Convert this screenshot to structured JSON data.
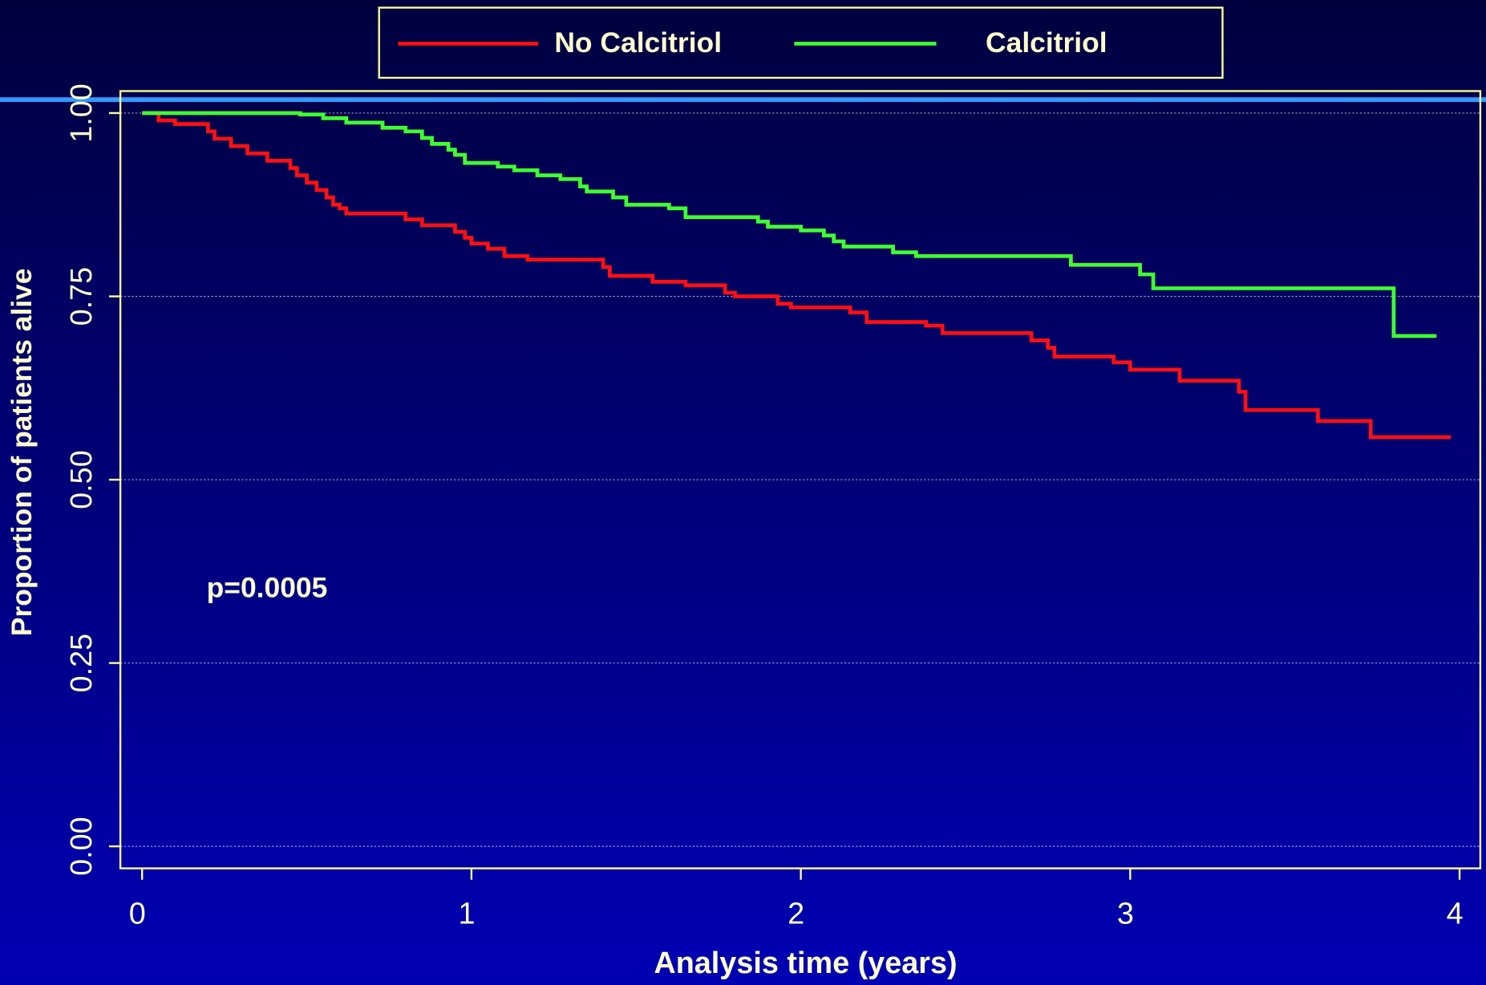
{
  "chart_data": {
    "type": "step",
    "xlabel": "Analysis time (years)",
    "ylabel": "Proportion of patients alive",
    "annotation": "p=0.0005",
    "xlim": [
      -0.066,
      4.063
    ],
    "ylim": [
      -0.03,
      1.03
    ],
    "xticks": [
      0,
      1,
      2,
      3,
      4
    ],
    "yticks": [
      {
        "value": 0,
        "label": "0.00"
      },
      {
        "value": 0.25,
        "label": "0.25"
      },
      {
        "value": 0.5,
        "label": "0.50"
      },
      {
        "value": 0.75,
        "label": "0.75"
      },
      {
        "value": 1,
        "label": "1.00"
      }
    ],
    "grid": true,
    "series": [
      {
        "name": "No Calcitriol",
        "color": "#ff1010",
        "x": [
          0,
          0.05,
          0.1,
          0.2,
          0.22,
          0.27,
          0.32,
          0.38,
          0.45,
          0.47,
          0.5,
          0.53,
          0.56,
          0.58,
          0.6,
          0.62,
          0.8,
          0.85,
          0.95,
          0.98,
          1.0,
          1.05,
          1.1,
          1.17,
          1.4,
          1.42,
          1.55,
          1.65,
          1.77,
          1.8,
          1.93,
          1.97,
          2.15,
          2.2,
          2.38,
          2.43,
          2.7,
          2.75,
          2.77,
          2.95,
          3.0,
          3.15,
          3.33,
          3.35,
          3.57,
          3.73,
          3.974
        ],
        "values": [
          1.0,
          0.99,
          0.985,
          0.975,
          0.965,
          0.955,
          0.945,
          0.935,
          0.925,
          0.915,
          0.905,
          0.895,
          0.885,
          0.875,
          0.87,
          0.863,
          0.855,
          0.847,
          0.838,
          0.83,
          0.822,
          0.815,
          0.805,
          0.8,
          0.79,
          0.778,
          0.77,
          0.765,
          0.755,
          0.75,
          0.74,
          0.735,
          0.728,
          0.715,
          0.71,
          0.7,
          0.69,
          0.68,
          0.668,
          0.66,
          0.65,
          0.635,
          0.62,
          0.595,
          0.58,
          0.558,
          0.558
        ]
      },
      {
        "name": "Calcitriol",
        "color": "#40ff30",
        "x": [
          0,
          0.48,
          0.55,
          0.62,
          0.73,
          0.8,
          0.85,
          0.88,
          0.93,
          0.95,
          0.98,
          1.08,
          1.13,
          1.2,
          1.27,
          1.33,
          1.35,
          1.43,
          1.47,
          1.6,
          1.65,
          1.87,
          1.9,
          2.0,
          2.07,
          2.1,
          2.13,
          2.28,
          2.35,
          2.82,
          3.03,
          3.07,
          3.8,
          3.93
        ],
        "values": [
          1.0,
          0.998,
          0.993,
          0.987,
          0.98,
          0.975,
          0.966,
          0.958,
          0.95,
          0.943,
          0.932,
          0.927,
          0.922,
          0.915,
          0.91,
          0.9,
          0.893,
          0.885,
          0.875,
          0.87,
          0.858,
          0.852,
          0.845,
          0.84,
          0.833,
          0.825,
          0.818,
          0.81,
          0.805,
          0.793,
          0.78,
          0.761,
          0.696,
          0.696
        ]
      }
    ]
  }
}
